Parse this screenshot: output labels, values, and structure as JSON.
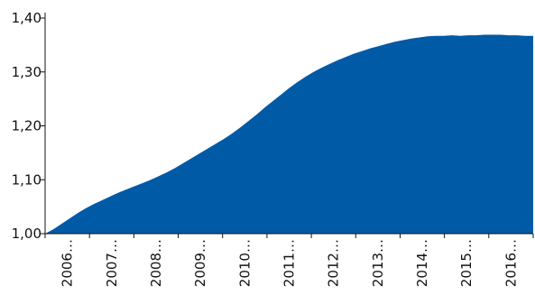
{
  "chart_data": {
    "type": "area",
    "title": "",
    "xlabel": "",
    "ylabel": "",
    "fill_color": "#005aa6",
    "ylim": [
      1.0,
      1.4
    ],
    "x_tick_labels": [
      "2006…",
      "2007…",
      "2008…",
      "2009…",
      "2010…",
      "2011…",
      "2012…",
      "2013…",
      "2014…",
      "2015…",
      "2016…"
    ],
    "y_tick_labels": [
      "1,00",
      "1,10",
      "1,20",
      "1,30",
      "1,40"
    ],
    "y_tick_values": [
      1.0,
      1.1,
      1.2,
      1.3,
      1.4
    ],
    "grid": false,
    "series": [
      {
        "values": [
          1.0,
          1.008,
          1.018,
          1.028,
          1.038,
          1.047,
          1.055,
          1.062,
          1.069,
          1.076,
          1.082,
          1.088,
          1.094,
          1.1,
          1.107,
          1.114,
          1.122,
          1.131,
          1.14,
          1.149,
          1.158,
          1.167,
          1.176,
          1.186,
          1.197,
          1.209,
          1.221,
          1.234,
          1.246,
          1.258,
          1.27,
          1.281,
          1.291,
          1.3,
          1.308,
          1.315,
          1.322,
          1.328,
          1.334,
          1.339,
          1.344,
          1.348,
          1.352,
          1.356,
          1.359,
          1.362,
          1.364,
          1.366,
          1.367,
          1.367,
          1.368,
          1.367,
          1.368,
          1.368,
          1.369,
          1.369,
          1.369,
          1.368,
          1.368,
          1.367,
          1.367
        ]
      }
    ]
  }
}
